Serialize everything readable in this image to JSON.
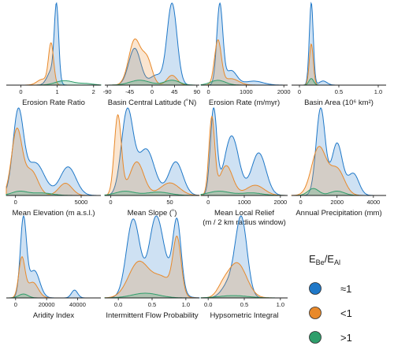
{
  "colors": {
    "eq1": "#1f78c8",
    "lt1": "#e8892a",
    "gt1": "#2e9e6b"
  },
  "legend": {
    "title_main": "E",
    "title_sub1": "Be",
    "title_slash": "/E",
    "title_sub2": "Al",
    "items": [
      {
        "key": "eq1",
        "label": "≈1"
      },
      {
        "key": "lt1",
        "label": "<1"
      },
      {
        "key": "gt1",
        "label": ">1"
      }
    ]
  },
  "chart_data": [
    {
      "type": "area",
      "xlabel": "Erosion Rate Ratio",
      "xlabel2": "",
      "xlim": [
        -0.4,
        2.2
      ],
      "ticks": [
        0,
        1,
        2
      ],
      "tick_labels": [
        "0",
        "1",
        "2"
      ],
      "series": [
        {
          "name": "≈1",
          "peaks": [
            [
              0.98,
              0.06,
              1.0
            ],
            [
              0.85,
              0.12,
              0.2
            ]
          ]
        },
        {
          "name": "<1",
          "peaks": [
            [
              0.83,
              0.07,
              0.55
            ],
            [
              0.6,
              0.15,
              0.08
            ]
          ]
        },
        {
          "name": ">1",
          "peaks": [
            [
              1.2,
              0.25,
              0.06
            ],
            [
              1.8,
              0.2,
              0.02
            ]
          ]
        }
      ]
    },
    {
      "type": "area",
      "xlabel": "Basin Central Latitude (˚N)",
      "xlabel2": "",
      "xlim": [
        -95,
        95
      ],
      "ticks": [
        -90,
        -45,
        0,
        45,
        90
      ],
      "tick_labels": [
        "-90",
        "-45",
        "0",
        "45",
        "90"
      ],
      "series": [
        {
          "name": "≈1",
          "peaks": [
            [
              40,
              10,
              1.0
            ],
            [
              -35,
              12,
              0.45
            ],
            [
              8,
              12,
              0.12
            ]
          ]
        },
        {
          "name": "<1",
          "peaks": [
            [
              -35,
              12,
              0.55
            ],
            [
              -10,
              10,
              0.3
            ],
            [
              40,
              10,
              0.12
            ]
          ]
        },
        {
          "name": ">1",
          "peaks": [
            [
              -25,
              20,
              0.06
            ],
            [
              40,
              15,
              0.06
            ]
          ]
        }
      ]
    },
    {
      "type": "area",
      "xlabel": "Erosion Rate (m/myr)",
      "xlabel2": "",
      "xlim": [
        -200,
        2100
      ],
      "ticks": [
        0,
        1000,
        2000
      ],
      "tick_labels": [
        "0",
        "1000",
        "2000"
      ],
      "series": [
        {
          "name": "≈1",
          "peaks": [
            [
              300,
              80,
              1.0
            ],
            [
              600,
              150,
              0.18
            ],
            [
              1200,
              250,
              0.05
            ]
          ]
        },
        {
          "name": "<1",
          "peaks": [
            [
              250,
              90,
              0.55
            ],
            [
              600,
              200,
              0.08
            ]
          ]
        },
        {
          "name": ">1",
          "peaks": [
            [
              250,
              200,
              0.06
            ]
          ]
        }
      ]
    },
    {
      "type": "area",
      "xlabel": "Basin Area (10⁶ km²)",
      "xlabel2": "",
      "xlim": [
        -0.1,
        1.1
      ],
      "ticks": [
        0,
        0.5,
        1.0
      ],
      "tick_labels": [
        "0",
        "0.5",
        "1.0"
      ],
      "series": [
        {
          "name": "≈1",
          "peaks": [
            [
              0.15,
              0.025,
              1.0
            ],
            [
              0.3,
              0.05,
              0.05
            ]
          ]
        },
        {
          "name": "<1",
          "peaks": [
            [
              0.15,
              0.025,
              0.5
            ]
          ]
        },
        {
          "name": ">1",
          "peaks": [
            [
              0.15,
              0.03,
              0.08
            ]
          ]
        }
      ]
    },
    {
      "type": "area",
      "xlabel": "Mean Elevation (m a.s.l.)",
      "xlabel2": "",
      "xlim": [
        -700,
        6500
      ],
      "ticks": [
        0,
        5000
      ],
      "tick_labels": [
        "0",
        "5000"
      ],
      "series": [
        {
          "name": "≈1",
          "peaks": [
            [
              200,
              400,
              1.0
            ],
            [
              1500,
              700,
              0.4
            ],
            [
              4000,
              600,
              0.35
            ]
          ]
        },
        {
          "name": "<1",
          "peaks": [
            [
              100,
              400,
              0.8
            ],
            [
              1200,
              500,
              0.3
            ],
            [
              3800,
              500,
              0.15
            ]
          ]
        },
        {
          "name": ">1",
          "peaks": [
            [
              300,
              600,
              0.05
            ],
            [
              2000,
              800,
              0.03
            ]
          ]
        }
      ]
    },
    {
      "type": "area",
      "xlabel": "Mean Slope (˚)",
      "xlabel2": "",
      "xlim": [
        -5,
        75
      ],
      "ticks": [
        0,
        50
      ],
      "tick_labels": [
        "0",
        "50"
      ],
      "series": [
        {
          "name": "≈1",
          "peaks": [
            [
              14,
              5,
              1.0
            ],
            [
              30,
              7,
              0.55
            ],
            [
              55,
              6,
              0.4
            ]
          ]
        },
        {
          "name": "<1",
          "peaks": [
            [
              6,
              3,
              0.95
            ],
            [
              22,
              6,
              0.4
            ],
            [
              50,
              8,
              0.15
            ]
          ]
        },
        {
          "name": ">1",
          "peaks": [
            [
              12,
              8,
              0.05
            ],
            [
              40,
              10,
              0.04
            ]
          ]
        }
      ]
    },
    {
      "type": "area",
      "xlabel": "Mean Local Relief",
      "xlabel2": "(m / 2 km radius window)",
      "xlim": [
        -200,
        2200
      ],
      "ticks": [
        0,
        1000,
        2000
      ],
      "tick_labels": [
        "0",
        "1000",
        "2000"
      ],
      "series": [
        {
          "name": "≈1",
          "peaks": [
            [
              150,
              90,
              1.0
            ],
            [
              650,
              200,
              0.7
            ],
            [
              1400,
              200,
              0.5
            ]
          ]
        },
        {
          "name": "<1",
          "peaks": [
            [
              100,
              80,
              0.9
            ],
            [
              500,
              180,
              0.35
            ],
            [
              1300,
              250,
              0.12
            ]
          ]
        },
        {
          "name": ">1",
          "peaks": [
            [
              300,
              300,
              0.05
            ],
            [
              1200,
              300,
              0.03
            ]
          ]
        }
      ]
    },
    {
      "type": "area",
      "xlabel": "Annual Precipitation (mm)",
      "xlabel2": "",
      "xlim": [
        -500,
        4700
      ],
      "ticks": [
        0,
        2000,
        4000
      ],
      "tick_labels": [
        "0",
        "2000",
        "4000"
      ],
      "series": [
        {
          "name": "≈1",
          "peaks": [
            [
              1100,
              250,
              1.0
            ],
            [
              2000,
              300,
              0.6
            ],
            [
              2900,
              300,
              0.25
            ]
          ]
        },
        {
          "name": "<1",
          "peaks": [
            [
              1000,
              400,
              0.55
            ],
            [
              2000,
              400,
              0.3
            ]
          ]
        },
        {
          "name": ">1",
          "peaks": [
            [
              700,
              300,
              0.08
            ],
            [
              2000,
              400,
              0.05
            ]
          ]
        }
      ]
    },
    {
      "type": "area",
      "xlabel": "Aridity Index",
      "xlabel2": "",
      "xlim": [
        -6000,
        55000
      ],
      "ticks": [
        0,
        20000,
        40000
      ],
      "tick_labels": [
        "0",
        "20000",
        "40000"
      ],
      "series": [
        {
          "name": "≈1",
          "peaks": [
            [
              5000,
              2000,
              1.0
            ],
            [
              12000,
              3500,
              0.35
            ],
            [
              38000,
              2000,
              0.1
            ]
          ]
        },
        {
          "name": "<1",
          "peaks": [
            [
              4000,
              2000,
              0.5
            ],
            [
              11000,
              3500,
              0.2
            ]
          ]
        },
        {
          "name": ">1",
          "peaks": [
            [
              5000,
              3000,
              0.05
            ]
          ]
        }
      ]
    },
    {
      "type": "area",
      "xlabel": "Intermittent Flow Probability",
      "xlabel2": "",
      "xlim": [
        -0.2,
        1.2
      ],
      "ticks": [
        0,
        0.5,
        1.0
      ],
      "tick_labels": [
        "0.0",
        "0.5",
        "1.0"
      ],
      "series": [
        {
          "name": "≈1",
          "peaks": [
            [
              0.22,
              0.1,
              1.0
            ],
            [
              0.55,
              0.1,
              0.85
            ],
            [
              0.87,
              0.06,
              0.85
            ],
            [
              0.7,
              0.15,
              0.3
            ]
          ]
        },
        {
          "name": "<1",
          "peaks": [
            [
              0.3,
              0.15,
              0.45
            ],
            [
              0.65,
              0.15,
              0.25
            ],
            [
              0.87,
              0.06,
              0.7
            ]
          ]
        },
        {
          "name": ">1",
          "peaks": [
            [
              0.4,
              0.2,
              0.06
            ]
          ]
        }
      ]
    },
    {
      "type": "area",
      "xlabel": "Hypsometric Integral",
      "xlabel2": "",
      "xlim": [
        -0.1,
        1.1
      ],
      "ticks": [
        0,
        0.5,
        1.0
      ],
      "tick_labels": [
        "0.0",
        "0.5",
        "1.0"
      ],
      "series": [
        {
          "name": "≈1",
          "peaks": [
            [
              0.46,
              0.08,
              1.0
            ],
            [
              0.3,
              0.1,
              0.2
            ]
          ]
        },
        {
          "name": "<1",
          "peaks": [
            [
              0.4,
              0.13,
              0.45
            ],
            [
              0.2,
              0.08,
              0.1
            ]
          ]
        },
        {
          "name": ">1",
          "peaks": [
            [
              0.35,
              0.2,
              0.03
            ]
          ]
        }
      ]
    }
  ]
}
